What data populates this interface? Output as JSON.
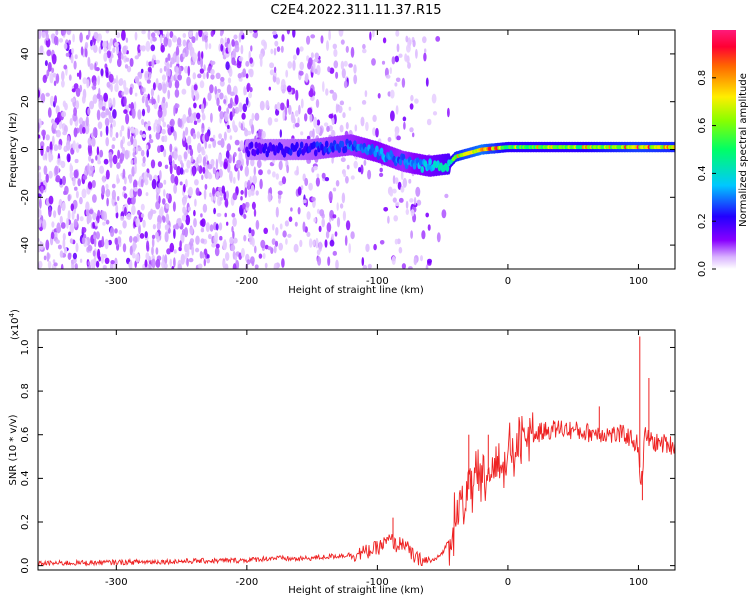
{
  "title": "C2E4.2022.311.11.37.R15",
  "colors": {
    "snr_line": "#ee2222",
    "spectrogram_dominant": "#7700ee",
    "colormap": [
      "#ffffff",
      "#cc99ff",
      "#8800ff",
      "#2200ff",
      "#00c8ff",
      "#00ff66",
      "#88ff00",
      "#ffee00",
      "#ff6600",
      "#ff0044",
      "#ff0066"
    ]
  },
  "chart_data": [
    {
      "type": "heatmap",
      "title": "C2E4.2022.311.11.37.R15",
      "xlabel": "Height of straight line (km)",
      "ylabel": "Frequency (Hz)",
      "xlim": [
        -360,
        128
      ],
      "ylim": [
        -50,
        50
      ],
      "xticks": [
        -300,
        -200,
        -100,
        0,
        100
      ],
      "yticks": [
        -40,
        -20,
        0,
        20,
        40
      ],
      "colorbar": {
        "label": "Normalized spectral amplitude",
        "range": [
          0.0,
          1.0
        ],
        "ticks": [
          "0.0",
          "0.2",
          "0.4",
          "0.6",
          "0.8"
        ]
      },
      "ridge": {
        "x": [
          -200,
          -150,
          -120,
          -100,
          -80,
          -60,
          -45,
          -40,
          -20,
          0,
          50,
          100,
          128
        ],
        "y": [
          0,
          0,
          2,
          -1,
          -5,
          -7,
          -6,
          -3,
          0,
          1,
          1,
          1,
          1
        ],
        "amplitude": [
          0.2,
          0.25,
          0.3,
          0.35,
          0.3,
          0.4,
          0.5,
          0.7,
          0.85,
          0.6,
          0.6,
          0.75,
          0.7
        ]
      },
      "noise": "scattered low-amplitude speckle over all frequencies for x < -45 km; dense for x < -190 km; sparse between -120 and -60 km"
    },
    {
      "type": "line",
      "xlabel": "Height of straight line (km)",
      "ylabel": "SNR (10 * v/v)",
      "y_multiplier": "(x10",
      "y_multiplier_exp": "4",
      "y_multiplier_close": ")",
      "xlim": [
        -360,
        128
      ],
      "ylim": [
        -0.02,
        1.08
      ],
      "xticks": [
        -300,
        -200,
        -100,
        0,
        100
      ],
      "yticks": [
        "0.0",
        "0.2",
        "0.4",
        "0.6",
        "0.8",
        "1.0"
      ],
      "series": [
        {
          "x": [
            -360,
            -300,
            -250,
            -200,
            -180,
            -160,
            -140,
            -120,
            -110,
            -100,
            -95,
            -90,
            -85,
            -80,
            -75,
            -70,
            -65,
            -60,
            -55,
            -50,
            -45,
            -40,
            -35,
            -30,
            -25,
            -20,
            -15,
            -10,
            -5,
            0,
            5,
            10,
            20,
            30,
            40,
            50,
            60,
            70,
            80,
            90,
            95,
            100,
            102,
            105,
            110,
            115,
            120,
            128
          ],
          "y": [
            0.01,
            0.015,
            0.02,
            0.025,
            0.035,
            0.03,
            0.04,
            0.05,
            0.06,
            0.08,
            0.1,
            0.12,
            0.09,
            0.11,
            0.06,
            0.03,
            0.02,
            0.02,
            0.03,
            0.06,
            0.12,
            0.2,
            0.28,
            0.35,
            0.38,
            0.37,
            0.42,
            0.45,
            0.47,
            0.5,
            0.52,
            0.56,
            0.6,
            0.62,
            0.63,
            0.62,
            0.61,
            0.61,
            0.6,
            0.6,
            0.58,
            0.55,
            0.35,
            0.6,
            0.57,
            0.56,
            0.56,
            0.55
          ],
          "spikes": [
            {
              "x": 101,
              "y": 1.05
            },
            {
              "x": 108,
              "y": 0.86
            },
            {
              "x": 70,
              "y": 0.73
            },
            {
              "x": 103,
              "y": 0.3
            },
            {
              "x": -88,
              "y": 0.22
            },
            {
              "x": -30,
              "y": 0.6
            },
            {
              "x": -15,
              "y": 0.6
            }
          ]
        }
      ]
    }
  ]
}
